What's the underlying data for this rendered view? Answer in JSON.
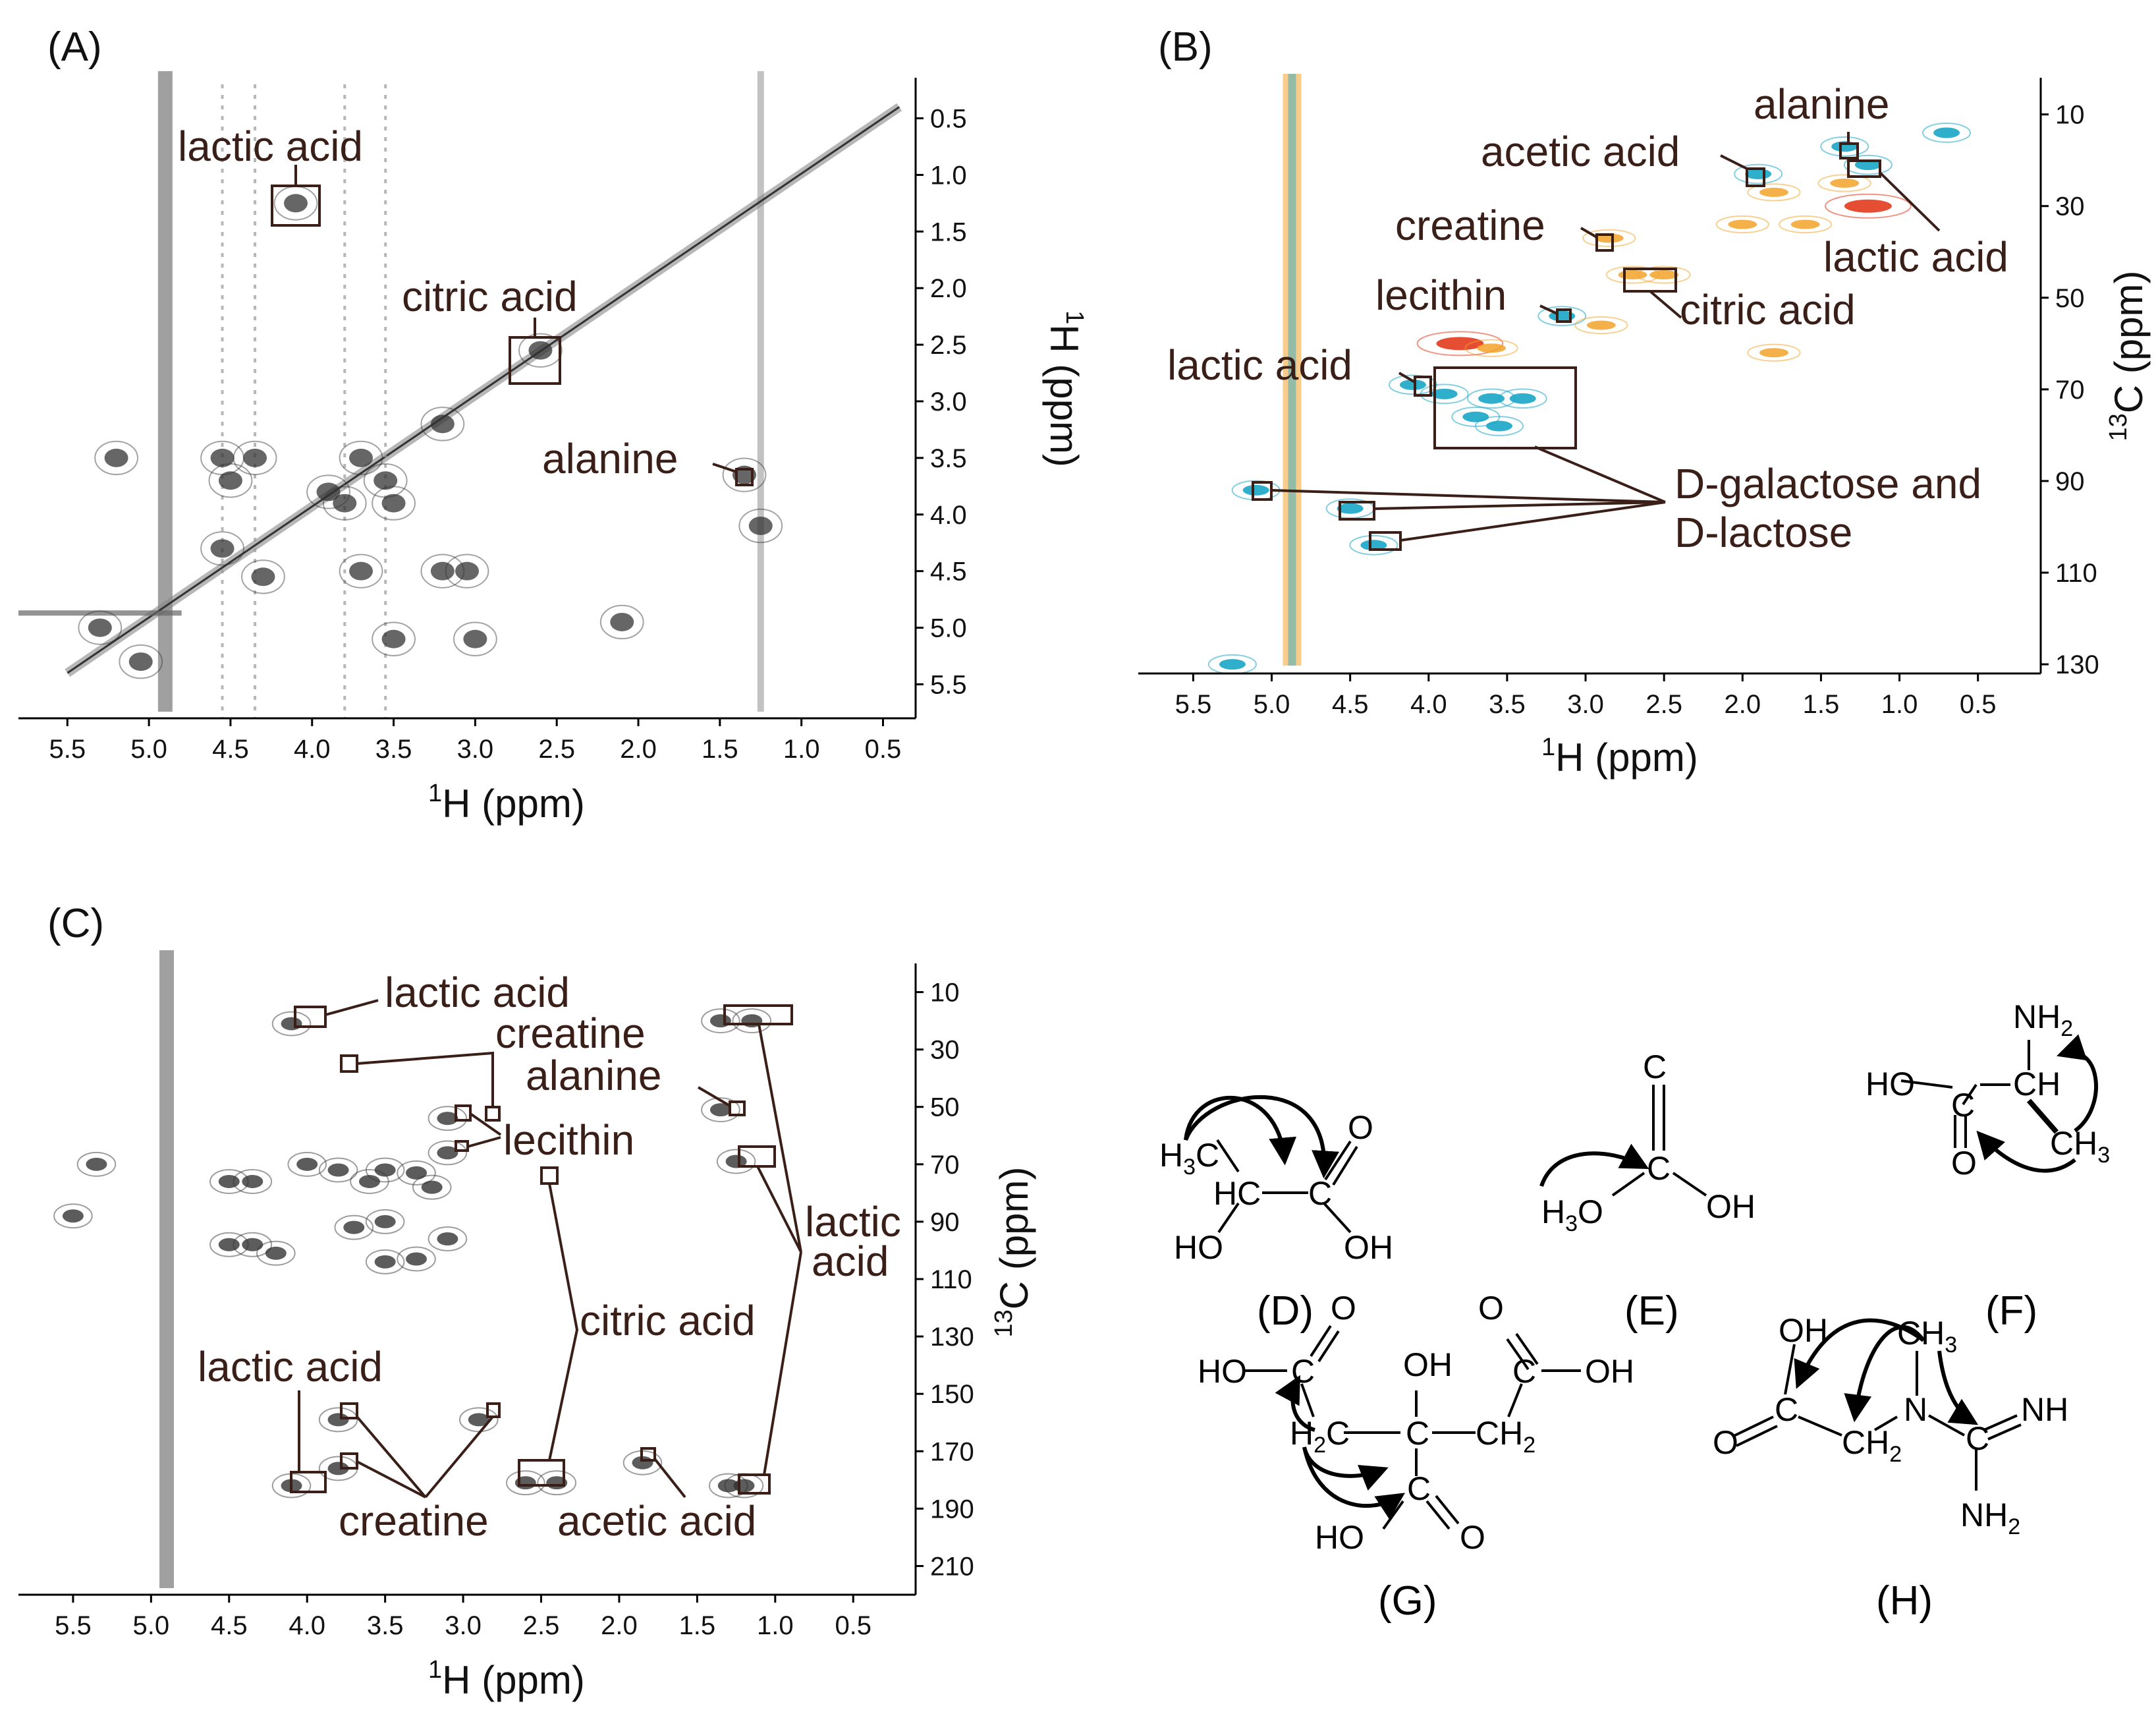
{
  "panels": {
    "A": {
      "letter": "(A)"
    },
    "B": {
      "letter": "(B)"
    },
    "C": {
      "letter": "(C)"
    },
    "D": {
      "letter": "(D)"
    },
    "E": {
      "letter": "(E)"
    },
    "F": {
      "letter": "(F)"
    },
    "G": {
      "letter": "(G)"
    },
    "H": {
      "letter": "(H)"
    }
  },
  "axis_text": {
    "h_ppm": "H (ppm)",
    "c_ppm": "C (ppm)",
    "sup_1": "1",
    "sup_13": "13"
  },
  "chart_data": [
    {
      "id": "A",
      "type": "heatmap",
      "title": "",
      "xlabel": "1H (ppm)",
      "ylabel": "1H (ppm)",
      "xlim": [
        5.8,
        0.3
      ],
      "ylim": [
        0.2,
        5.8
      ],
      "x_ticks": [
        "5.5",
        "5.0",
        "4.5",
        "4.0",
        "3.5",
        "3.0",
        "2.5",
        "2.0",
        "1.5",
        "1.0",
        "0.5"
      ],
      "y_ticks": [
        "0.5",
        "1.0",
        "1.5",
        "2.0",
        "2.5",
        "3.0",
        "3.5",
        "4.0",
        "4.5",
        "5.0",
        "5.5"
      ],
      "annotations": [
        {
          "text": "lactic acid",
          "x": 4.1,
          "y": 1.25
        },
        {
          "text": "citric acid",
          "x": 2.6,
          "y": 2.6
        },
        {
          "text": "alanine",
          "x": 1.35,
          "y": 3.65
        }
      ],
      "peaks": [
        [
          4.1,
          1.25
        ],
        [
          1.25,
          4.1
        ],
        [
          3.2,
          3.2
        ],
        [
          3.7,
          3.5
        ],
        [
          3.55,
          3.7
        ],
        [
          4.55,
          3.5
        ],
        [
          4.35,
          3.5
        ],
        [
          4.55,
          4.3
        ],
        [
          4.3,
          4.55
        ],
        [
          3.8,
          3.9
        ],
        [
          3.9,
          3.8
        ],
        [
          3.5,
          3.9
        ],
        [
          3.2,
          4.5
        ],
        [
          3.05,
          4.5
        ],
        [
          5.2,
          3.5
        ],
        [
          5.3,
          5.0
        ],
        [
          5.05,
          5.3
        ],
        [
          3.7,
          4.5
        ],
        [
          4.5,
          3.7
        ],
        [
          1.35,
          3.65
        ],
        [
          2.6,
          2.55
        ],
        [
          2.1,
          4.95
        ],
        [
          3.5,
          5.1
        ],
        [
          3.0,
          5.1
        ]
      ],
      "ridges": [
        4.9,
        1.25
      ]
    },
    {
      "id": "B",
      "type": "heatmap",
      "title": "",
      "xlabel": "1H (ppm)",
      "ylabel": "13C (ppm)",
      "xlim": [
        5.85,
        0.1
      ],
      "ylim": [
        2,
        132
      ],
      "x_ticks": [
        "5.5",
        "5.0",
        "4.5",
        "4.0",
        "3.5",
        "3.0",
        "2.5",
        "2.0",
        "1.5",
        "1.0",
        "0.5"
      ],
      "y_ticks": [
        "10",
        "30",
        "50",
        "70",
        "90",
        "110",
        "130"
      ],
      "annotations": [
        {
          "text": "alanine",
          "x": 1.3,
          "y": 17
        },
        {
          "text": "acetic acid",
          "x": 1.9,
          "y": 22
        },
        {
          "text": "lactic acid",
          "x": 1.2,
          "y": 21
        },
        {
          "text": "creatine",
          "x": 2.85,
          "y": 37
        },
        {
          "text": "citric acid",
          "x": 2.6,
          "y": 45
        },
        {
          "text": "lecithin",
          "x": 3.15,
          "y": 54
        },
        {
          "text": "lactic acid",
          "x": 4.1,
          "y": 69
        },
        {
          "text": "D-galactose and",
          "x": 4.2,
          "y": 92
        },
        {
          "text": "D-lactose",
          "x": 4.2,
          "y": 98
        }
      ],
      "peaks": [
        [
          1.2,
          21,
          "cyan"
        ],
        [
          1.35,
          17,
          "cyan"
        ],
        [
          1.9,
          23,
          "cyan"
        ],
        [
          0.7,
          14,
          "cyan"
        ],
        [
          1.2,
          30,
          "red"
        ],
        [
          1.35,
          25,
          "orange"
        ],
        [
          1.8,
          27,
          "orange"
        ],
        [
          2.0,
          34,
          "orange"
        ],
        [
          1.6,
          34,
          "orange"
        ],
        [
          2.85,
          37,
          "orange"
        ],
        [
          2.7,
          45,
          "orange"
        ],
        [
          2.5,
          45,
          "orange"
        ],
        [
          3.15,
          54,
          "cyan"
        ],
        [
          3.8,
          60,
          "red"
        ],
        [
          3.6,
          61,
          "orange"
        ],
        [
          4.1,
          69,
          "cyan"
        ],
        [
          3.9,
          71,
          "cyan"
        ],
        [
          3.6,
          72,
          "cyan"
        ],
        [
          3.4,
          72,
          "cyan"
        ],
        [
          3.7,
          76,
          "cyan"
        ],
        [
          3.55,
          78,
          "cyan"
        ],
        [
          5.1,
          92,
          "cyan"
        ],
        [
          4.5,
          96,
          "cyan"
        ],
        [
          4.35,
          104,
          "cyan"
        ],
        [
          5.25,
          130,
          "cyan"
        ],
        [
          2.9,
          56,
          "orange"
        ],
        [
          1.8,
          62,
          "orange"
        ]
      ],
      "ridges": [
        4.87
      ]
    },
    {
      "id": "C",
      "type": "heatmap",
      "title": "",
      "xlabel": "1H (ppm)",
      "ylabel": "13C (ppm)",
      "xlim": [
        5.85,
        0.1
      ],
      "ylim": [
        0,
        220
      ],
      "x_ticks": [
        "5.5",
        "5.0",
        "4.5",
        "4.0",
        "3.5",
        "3.0",
        "2.5",
        "2.0",
        "1.5",
        "1.0",
        "0.5"
      ],
      "y_ticks": [
        "10",
        "30",
        "50",
        "70",
        "90",
        "110",
        "130",
        "150",
        "170",
        "190",
        "210"
      ],
      "annotations": [
        {
          "text": "lactic acid",
          "x": 4.1,
          "y": 21
        },
        {
          "text": "creatine",
          "x": 3.8,
          "y": 37
        },
        {
          "text": "alanine",
          "x": 1.35,
          "y": 51
        },
        {
          "text": "lecithin",
          "x": 3.1,
          "y": 54
        },
        {
          "text": "lactic acid",
          "x": 1.25,
          "y": 69
        },
        {
          "text": "citric acid",
          "x": 2.55,
          "y": 75
        },
        {
          "text": "lactic acid",
          "x": 4.1,
          "y": 182
        },
        {
          "text": "creatine",
          "x": 3.8,
          "y": 176
        },
        {
          "text": "acetic acid",
          "x": 1.9,
          "y": 174
        }
      ],
      "peaks": [
        [
          4.1,
          21
        ],
        [
          1.35,
          20
        ],
        [
          1.15,
          20
        ],
        [
          1.35,
          51
        ],
        [
          3.1,
          54
        ],
        [
          3.1,
          66
        ],
        [
          1.25,
          69
        ],
        [
          3.5,
          72
        ],
        [
          3.8,
          72
        ],
        [
          3.3,
          73
        ],
        [
          3.6,
          76
        ],
        [
          3.2,
          78
        ],
        [
          4.0,
          70
        ],
        [
          4.35,
          76
        ],
        [
          4.5,
          76
        ],
        [
          5.35,
          70
        ],
        [
          3.5,
          90
        ],
        [
          3.7,
          92
        ],
        [
          4.5,
          98
        ],
        [
          4.35,
          98
        ],
        [
          4.2,
          101
        ],
        [
          3.3,
          103
        ],
        [
          3.5,
          104
        ],
        [
          3.1,
          96
        ],
        [
          4.1,
          182
        ],
        [
          1.2,
          182
        ],
        [
          1.3,
          182
        ],
        [
          2.6,
          181
        ],
        [
          2.4,
          181
        ],
        [
          1.85,
          174
        ],
        [
          5.5,
          88
        ],
        [
          3.8,
          159
        ],
        [
          2.9,
          159
        ],
        [
          3.8,
          176
        ]
      ],
      "ridges": [
        4.9
      ]
    }
  ],
  "structures": {
    "D": {
      "h3c": "H",
      "sub3": "3",
      "c": "C",
      "hc": "HC",
      "c2": "C",
      "o": "O",
      "ho": "HO",
      "oh": "OH"
    },
    "E": {
      "h3c": "H",
      "sub3": "3",
      "c": "C",
      "c2": "C",
      "o": "O",
      "oh": "OH"
    },
    "F": {
      "nh2": "NH",
      "sub2": "2",
      "ho": "HO",
      "c": "C",
      "ch": "CH",
      "ch3": "CH",
      "sub3": "3",
      "o": "O"
    },
    "G": {
      "ho1": "HO",
      "c1": "C",
      "o1": "O",
      "oh": "OH",
      "o2": "O",
      "c3": "C",
      "oh2": "OH",
      "h2c": "H",
      "sub2": "2",
      "c_mid": "C",
      "c_mid2": "C",
      "ch2": "CH",
      "ho3": "HO",
      "c4": "C",
      "o4": "O"
    },
    "H": {
      "oh": "OH",
      "ch3": "CH",
      "sub3": "3",
      "o": "O",
      "c": "C",
      "ch2": "CH",
      "sub2": "2",
      "n": "N",
      "c2": "C",
      "nh": "NH",
      "nh2": "NH",
      "sub2b": "2"
    }
  },
  "colors": {
    "label_text": "#3a1e18",
    "contour_gray": "#555555",
    "cyan": "#1aa6c8",
    "orange": "#f2a32a",
    "red": "#e23b1c",
    "box": "#3a1e18"
  }
}
